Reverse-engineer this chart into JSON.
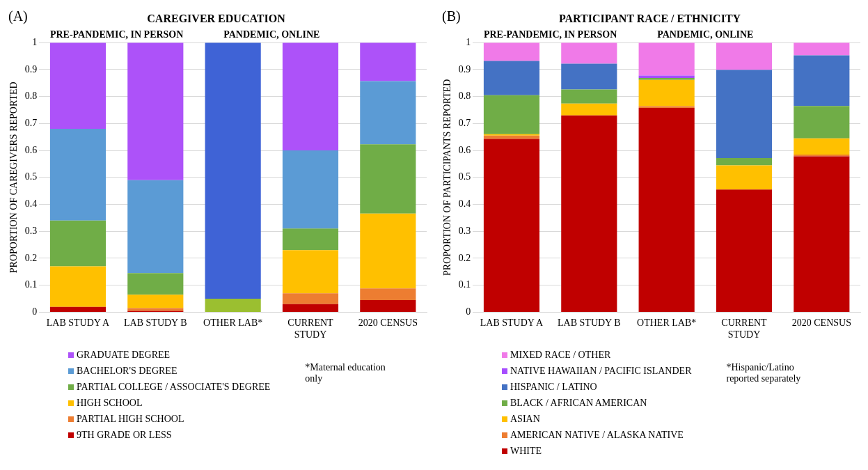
{
  "chart_data": [
    {
      "type": "bar",
      "title": "CAREGIVER EDUCATION",
      "ylabel": "PROPORTION OF CAREGIVERS REPORTED",
      "categories": [
        "LAB STUDY A",
        "LAB STUDY B",
        "OTHER LAB*",
        "CURRENT STUDY",
        "2020 CENSUS"
      ],
      "stacked": true,
      "ylim": [
        0,
        1
      ],
      "yticks": [
        0,
        0.1,
        0.2,
        0.3,
        0.4,
        0.5,
        0.6,
        0.7,
        0.8,
        0.9,
        1
      ],
      "grid": "y",
      "legend": "bottom",
      "annotations": [
        "(A)",
        "PRE-PANDEMIC, IN PERSON",
        "PANDEMIC, ONLINE",
        "*Maternal education only"
      ],
      "series": [
        {
          "name": "9TH GRADE OR LESS",
          "color": "#c00000",
          "values": [
            0.02,
            0.005,
            null,
            0.03,
            0.045
          ]
        },
        {
          "name": "PARTIAL HIGH SCHOOL",
          "color": "#ed7d31",
          "values": [
            0,
            0.01,
            null,
            0.04,
            0.043
          ]
        },
        {
          "name": "HIGH SCHOOL",
          "color": "#ffc000",
          "values": [
            0.15,
            0.05,
            null,
            0.16,
            0.278
          ]
        },
        {
          "name": "PARTIAL COLLEGE / ASSOCIATE'S DEGREE",
          "color": "#70ad47",
          "values": [
            0.17,
            0.08,
            null,
            0.08,
            0.257
          ]
        },
        {
          "color": "#9bbf30",
          "values": [
            null,
            null,
            0.05,
            null,
            null
          ]
        },
        {
          "name": "BACHELOR'S DEGREE",
          "color": "#5b9bd5",
          "values": [
            0.34,
            0.345,
            null,
            0.29,
            0.234
          ]
        },
        {
          "color": "#3f63d6",
          "values": [
            null,
            null,
            0.95,
            null,
            null
          ]
        },
        {
          "name": "GRADUATE DEGREE",
          "color": "#ad52f9",
          "values": [
            0.32,
            0.51,
            null,
            0.4,
            0.143
          ]
        }
      ]
    },
    {
      "type": "bar",
      "title": "PARTICIPANT RACE / ETHNICITY",
      "ylabel": "PROPORTION OF PARTICIPANTS REPORTED",
      "categories": [
        "LAB STUDY A",
        "LAB STUDY B",
        "OTHER LAB*",
        "CURRENT STUDY",
        "2020 CENSUS"
      ],
      "stacked": true,
      "ylim": [
        0,
        1
      ],
      "yticks": [
        0,
        0.1,
        0.2,
        0.3,
        0.4,
        0.5,
        0.6,
        0.7,
        0.8,
        0.9,
        1
      ],
      "grid": "y",
      "legend": "bottom",
      "annotations": [
        "(B)",
        "PRE-PANDEMIC, IN PERSON",
        "PANDEMIC, ONLINE",
        "*Hispanic/Latino reported separately"
      ],
      "series": [
        {
          "name": "WHITE",
          "color": "#c00000",
          "values": [
            0.643,
            0.73,
            0.758,
            0.455,
            0.578
          ]
        },
        {
          "name": "AMERICAN NATIVE / ALASKA NATIVE",
          "color": "#ed7d31",
          "values": [
            0.012,
            0,
            0.006,
            0,
            0.007
          ]
        },
        {
          "name": "ASIAN",
          "color": "#ffc000",
          "values": [
            0.005,
            0.044,
            0.098,
            0.09,
            0.06
          ]
        },
        {
          "name": "BLACK / AFRICAN AMERICAN",
          "color": "#70ad47",
          "values": [
            0.145,
            0.052,
            0.007,
            0.027,
            0.12
          ]
        },
        {
          "name": "HISPANIC / LATINO",
          "color": "#4472c4",
          "values": [
            0.127,
            0.096,
            null,
            0.327,
            0.188
          ]
        },
        {
          "name": "NATIVE HAWAIIAN / PACIFIC ISLANDER",
          "color": "#a64dff",
          "values": [
            0,
            0,
            0.009,
            0,
            0
          ]
        },
        {
          "name": "MIXED RACE / OTHER",
          "color": "#f07ae8",
          "values": [
            0.068,
            0.078,
            0.122,
            0.101,
            0.047
          ]
        }
      ]
    }
  ]
}
